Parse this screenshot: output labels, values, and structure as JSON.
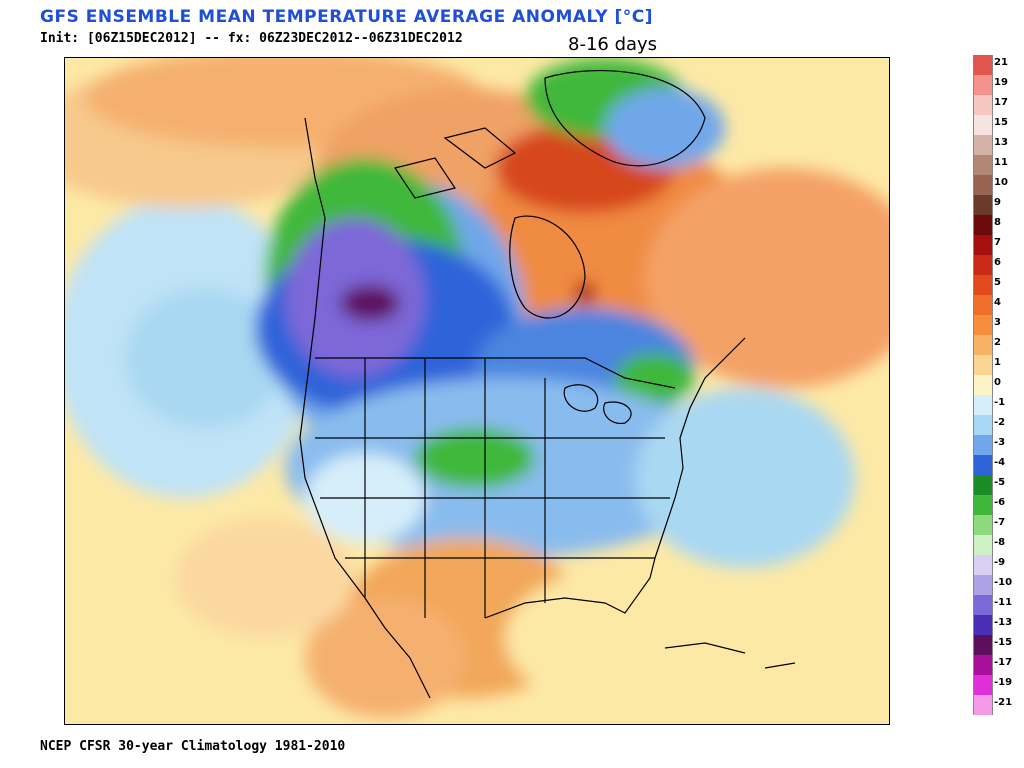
{
  "header": {
    "title": "GFS ENSEMBLE MEAN TEMPERATURE AVERAGE ANOMALY [°C]",
    "init_line": "Init: [06Z15DEC2012] -- fx: 06Z23DEC2012--06Z31DEC2012",
    "period": "8-16 days"
  },
  "footer": {
    "climatology": "NCEP CFSR 30-year Climatology 1981-2010"
  },
  "map": {
    "region": "North America",
    "variable": "temperature anomaly",
    "units": "°C",
    "colors": {
      "ocean_background": "#fde9a6",
      "gulf_warm": "#f2a75a",
      "pacific_cool": "#a9d8f2",
      "greenland_warm": "#f08b43",
      "cold_core": "#4a2e8a"
    }
  },
  "legend": {
    "items": [
      {
        "label": "21",
        "color": "#e2564d"
      },
      {
        "label": "19",
        "color": "#f4938b"
      },
      {
        "label": "17",
        "color": "#f8c6c0"
      },
      {
        "label": "15",
        "color": "#f7e3df"
      },
      {
        "label": "13",
        "color": "#d4b2a6"
      },
      {
        "label": "11",
        "color": "#b38775"
      },
      {
        "label": "10",
        "color": "#966451"
      },
      {
        "label": "9",
        "color": "#6b3a2a"
      },
      {
        "label": "8",
        "color": "#6a0a0a"
      },
      {
        "label": "7",
        "color": "#a4100d"
      },
      {
        "label": "6",
        "color": "#c92a17"
      },
      {
        "label": "5",
        "color": "#e24a1c"
      },
      {
        "label": "4",
        "color": "#f06f2b"
      },
      {
        "label": "3",
        "color": "#f58f3c"
      },
      {
        "label": "2",
        "color": "#f7b163"
      },
      {
        "label": "1",
        "color": "#fad591"
      },
      {
        "label": "0",
        "color": "#fdf3c4"
      },
      {
        "label": "-1",
        "color": "#d6eefa"
      },
      {
        "label": "-2",
        "color": "#a9d8f4"
      },
      {
        "label": "-3",
        "color": "#6fa7ea"
      },
      {
        "label": "-4",
        "color": "#2f64d9"
      },
      {
        "label": "-5",
        "color": "#1b8c23"
      },
      {
        "label": "-6",
        "color": "#3fb83a"
      },
      {
        "label": "-7",
        "color": "#8cd97e"
      },
      {
        "label": "-8",
        "color": "#cdf0c4"
      },
      {
        "label": "-9",
        "color": "#d8d1f3"
      },
      {
        "label": "-10",
        "color": "#aea2e7"
      },
      {
        "label": "-11",
        "color": "#7d68d8"
      },
      {
        "label": "-13",
        "color": "#4a2fb6"
      },
      {
        "label": "-15",
        "color": "#5d0f5e"
      },
      {
        "label": "-17",
        "color": "#a8109b"
      },
      {
        "label": "-19",
        "color": "#e12fd7"
      },
      {
        "label": "-21",
        "color": "#f59ae8"
      }
    ]
  }
}
